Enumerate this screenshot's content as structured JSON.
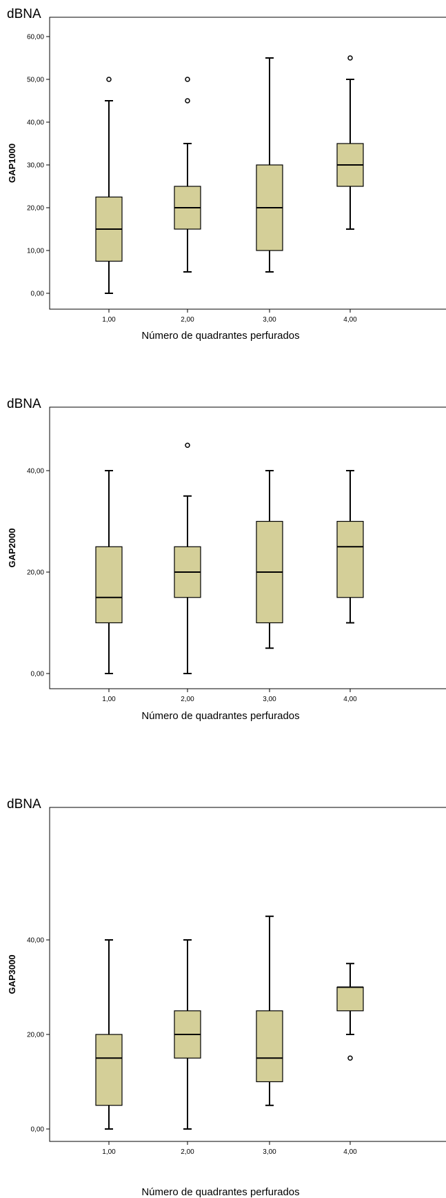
{
  "chart_data": [
    {
      "type": "boxplot",
      "unit_label": "dBNA",
      "xlabel": "Número de quadrantes perfurados",
      "ylabel": "GAP1000",
      "ylim": [
        0,
        60
      ],
      "yticks": [
        "0,00",
        "10,00",
        "20,00",
        "30,00",
        "40,00",
        "50,00",
        "60,00"
      ],
      "ytick_values": [
        0,
        10,
        20,
        30,
        40,
        50,
        60
      ],
      "categories": [
        "1,00",
        "2,00",
        "3,00",
        "4,00"
      ],
      "boxes": [
        {
          "category": "1,00",
          "whisker_low": 0,
          "q1": 7.5,
          "median": 15,
          "q3": 22.5,
          "whisker_high": 45,
          "outliers": [
            50
          ]
        },
        {
          "category": "2,00",
          "whisker_low": 5,
          "q1": 15,
          "median": 20,
          "q3": 25,
          "whisker_high": 35,
          "outliers": [
            45,
            50
          ]
        },
        {
          "category": "3,00",
          "whisker_low": 5,
          "q1": 10,
          "median": 20,
          "q3": 30,
          "whisker_high": 55,
          "outliers": []
        },
        {
          "category": "4,00",
          "whisker_low": 15,
          "q1": 25,
          "median": 30,
          "q3": 35,
          "whisker_high": 50,
          "outliers": [
            55
          ]
        }
      ],
      "box_color": "#d4cf98",
      "grid": false
    },
    {
      "type": "boxplot",
      "unit_label": "dBNA",
      "xlabel": "Número de quadrantes perfurados",
      "ylabel": "GAP2000",
      "ylim": [
        -2,
        55
      ],
      "yticks": [
        "0,00",
        "20,00",
        "40,00"
      ],
      "ytick_values": [
        0,
        20,
        40
      ],
      "categories": [
        "1,00",
        "2,00",
        "3,00",
        "4,00"
      ],
      "boxes": [
        {
          "category": "1,00",
          "whisker_low": 0,
          "q1": 10,
          "median": 15,
          "q3": 25,
          "whisker_high": 40,
          "outliers": []
        },
        {
          "category": "2,00",
          "whisker_low": 0,
          "q1": 15,
          "median": 20,
          "q3": 25,
          "whisker_high": 35,
          "outliers": [
            45
          ]
        },
        {
          "category": "3,00",
          "whisker_low": 5,
          "q1": 10,
          "median": 20,
          "q3": 30,
          "whisker_high": 40,
          "outliers": []
        },
        {
          "category": "4,00",
          "whisker_low": 10,
          "q1": 15,
          "median": 25,
          "q3": 30,
          "whisker_high": 40,
          "outliers": []
        }
      ],
      "box_color": "#d4cf98",
      "grid": false
    },
    {
      "type": "boxplot",
      "unit_label": "dBNA",
      "xlabel": "Número de quadrantes perfurados",
      "ylabel": "GAP3000",
      "ylim": [
        -2,
        53
      ],
      "yticks": [
        "0,00",
        "20,00",
        "40,00"
      ],
      "ytick_values": [
        0,
        20,
        40
      ],
      "categories": [
        "1,00",
        "2,00",
        "3,00",
        "4,00"
      ],
      "boxes": [
        {
          "category": "1,00",
          "whisker_low": 0,
          "q1": 5,
          "median": 15,
          "q3": 20,
          "whisker_high": 40,
          "outliers": []
        },
        {
          "category": "2,00",
          "whisker_low": 0,
          "q1": 15,
          "median": 20,
          "q3": 25,
          "whisker_high": 40,
          "outliers": []
        },
        {
          "category": "3,00",
          "whisker_low": 5,
          "q1": 10,
          "median": 15,
          "q3": 25,
          "whisker_high": 45,
          "outliers": []
        },
        {
          "category": "4,00",
          "whisker_low": 20,
          "q1": 25,
          "median": 30,
          "q3": 30,
          "whisker_high": 35,
          "outliers": [
            15
          ]
        }
      ],
      "box_color": "#d4cf98",
      "grid": false
    }
  ]
}
